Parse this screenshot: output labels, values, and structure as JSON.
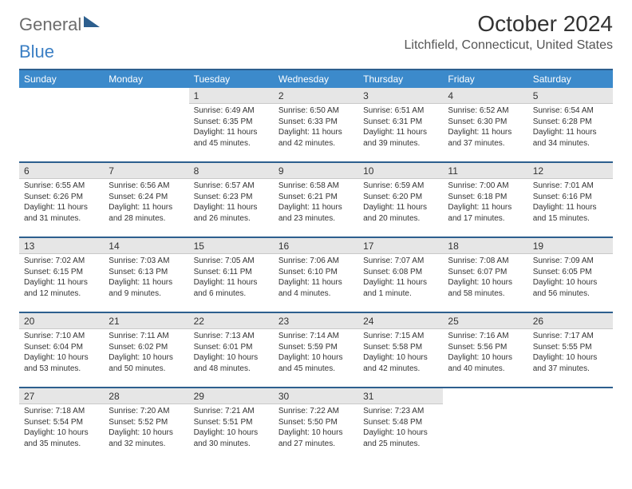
{
  "brand": {
    "part1": "General",
    "part2": "Blue"
  },
  "title": "October 2024",
  "location": "Litchfield, Connecticut, United States",
  "colors": {
    "header_bg": "#3c8acb",
    "border": "#2d5f8e",
    "daynum_bg": "#e6e6e6",
    "text": "#333333",
    "logo_gray": "#6c6c6c",
    "logo_blue": "#3b7fc4"
  },
  "day_headers": [
    "Sunday",
    "Monday",
    "Tuesday",
    "Wednesday",
    "Thursday",
    "Friday",
    "Saturday"
  ],
  "weeks": [
    [
      null,
      null,
      {
        "n": "1",
        "sr": "Sunrise: 6:49 AM",
        "ss": "Sunset: 6:35 PM",
        "dl": "Daylight: 11 hours and 45 minutes."
      },
      {
        "n": "2",
        "sr": "Sunrise: 6:50 AM",
        "ss": "Sunset: 6:33 PM",
        "dl": "Daylight: 11 hours and 42 minutes."
      },
      {
        "n": "3",
        "sr": "Sunrise: 6:51 AM",
        "ss": "Sunset: 6:31 PM",
        "dl": "Daylight: 11 hours and 39 minutes."
      },
      {
        "n": "4",
        "sr": "Sunrise: 6:52 AM",
        "ss": "Sunset: 6:30 PM",
        "dl": "Daylight: 11 hours and 37 minutes."
      },
      {
        "n": "5",
        "sr": "Sunrise: 6:54 AM",
        "ss": "Sunset: 6:28 PM",
        "dl": "Daylight: 11 hours and 34 minutes."
      }
    ],
    [
      {
        "n": "6",
        "sr": "Sunrise: 6:55 AM",
        "ss": "Sunset: 6:26 PM",
        "dl": "Daylight: 11 hours and 31 minutes."
      },
      {
        "n": "7",
        "sr": "Sunrise: 6:56 AM",
        "ss": "Sunset: 6:24 PM",
        "dl": "Daylight: 11 hours and 28 minutes."
      },
      {
        "n": "8",
        "sr": "Sunrise: 6:57 AM",
        "ss": "Sunset: 6:23 PM",
        "dl": "Daylight: 11 hours and 26 minutes."
      },
      {
        "n": "9",
        "sr": "Sunrise: 6:58 AM",
        "ss": "Sunset: 6:21 PM",
        "dl": "Daylight: 11 hours and 23 minutes."
      },
      {
        "n": "10",
        "sr": "Sunrise: 6:59 AM",
        "ss": "Sunset: 6:20 PM",
        "dl": "Daylight: 11 hours and 20 minutes."
      },
      {
        "n": "11",
        "sr": "Sunrise: 7:00 AM",
        "ss": "Sunset: 6:18 PM",
        "dl": "Daylight: 11 hours and 17 minutes."
      },
      {
        "n": "12",
        "sr": "Sunrise: 7:01 AM",
        "ss": "Sunset: 6:16 PM",
        "dl": "Daylight: 11 hours and 15 minutes."
      }
    ],
    [
      {
        "n": "13",
        "sr": "Sunrise: 7:02 AM",
        "ss": "Sunset: 6:15 PM",
        "dl": "Daylight: 11 hours and 12 minutes."
      },
      {
        "n": "14",
        "sr": "Sunrise: 7:03 AM",
        "ss": "Sunset: 6:13 PM",
        "dl": "Daylight: 11 hours and 9 minutes."
      },
      {
        "n": "15",
        "sr": "Sunrise: 7:05 AM",
        "ss": "Sunset: 6:11 PM",
        "dl": "Daylight: 11 hours and 6 minutes."
      },
      {
        "n": "16",
        "sr": "Sunrise: 7:06 AM",
        "ss": "Sunset: 6:10 PM",
        "dl": "Daylight: 11 hours and 4 minutes."
      },
      {
        "n": "17",
        "sr": "Sunrise: 7:07 AM",
        "ss": "Sunset: 6:08 PM",
        "dl": "Daylight: 11 hours and 1 minute."
      },
      {
        "n": "18",
        "sr": "Sunrise: 7:08 AM",
        "ss": "Sunset: 6:07 PM",
        "dl": "Daylight: 10 hours and 58 minutes."
      },
      {
        "n": "19",
        "sr": "Sunrise: 7:09 AM",
        "ss": "Sunset: 6:05 PM",
        "dl": "Daylight: 10 hours and 56 minutes."
      }
    ],
    [
      {
        "n": "20",
        "sr": "Sunrise: 7:10 AM",
        "ss": "Sunset: 6:04 PM",
        "dl": "Daylight: 10 hours and 53 minutes."
      },
      {
        "n": "21",
        "sr": "Sunrise: 7:11 AM",
        "ss": "Sunset: 6:02 PM",
        "dl": "Daylight: 10 hours and 50 minutes."
      },
      {
        "n": "22",
        "sr": "Sunrise: 7:13 AM",
        "ss": "Sunset: 6:01 PM",
        "dl": "Daylight: 10 hours and 48 minutes."
      },
      {
        "n": "23",
        "sr": "Sunrise: 7:14 AM",
        "ss": "Sunset: 5:59 PM",
        "dl": "Daylight: 10 hours and 45 minutes."
      },
      {
        "n": "24",
        "sr": "Sunrise: 7:15 AM",
        "ss": "Sunset: 5:58 PM",
        "dl": "Daylight: 10 hours and 42 minutes."
      },
      {
        "n": "25",
        "sr": "Sunrise: 7:16 AM",
        "ss": "Sunset: 5:56 PM",
        "dl": "Daylight: 10 hours and 40 minutes."
      },
      {
        "n": "26",
        "sr": "Sunrise: 7:17 AM",
        "ss": "Sunset: 5:55 PM",
        "dl": "Daylight: 10 hours and 37 minutes."
      }
    ],
    [
      {
        "n": "27",
        "sr": "Sunrise: 7:18 AM",
        "ss": "Sunset: 5:54 PM",
        "dl": "Daylight: 10 hours and 35 minutes."
      },
      {
        "n": "28",
        "sr": "Sunrise: 7:20 AM",
        "ss": "Sunset: 5:52 PM",
        "dl": "Daylight: 10 hours and 32 minutes."
      },
      {
        "n": "29",
        "sr": "Sunrise: 7:21 AM",
        "ss": "Sunset: 5:51 PM",
        "dl": "Daylight: 10 hours and 30 minutes."
      },
      {
        "n": "30",
        "sr": "Sunrise: 7:22 AM",
        "ss": "Sunset: 5:50 PM",
        "dl": "Daylight: 10 hours and 27 minutes."
      },
      {
        "n": "31",
        "sr": "Sunrise: 7:23 AM",
        "ss": "Sunset: 5:48 PM",
        "dl": "Daylight: 10 hours and 25 minutes."
      },
      null,
      null
    ]
  ]
}
